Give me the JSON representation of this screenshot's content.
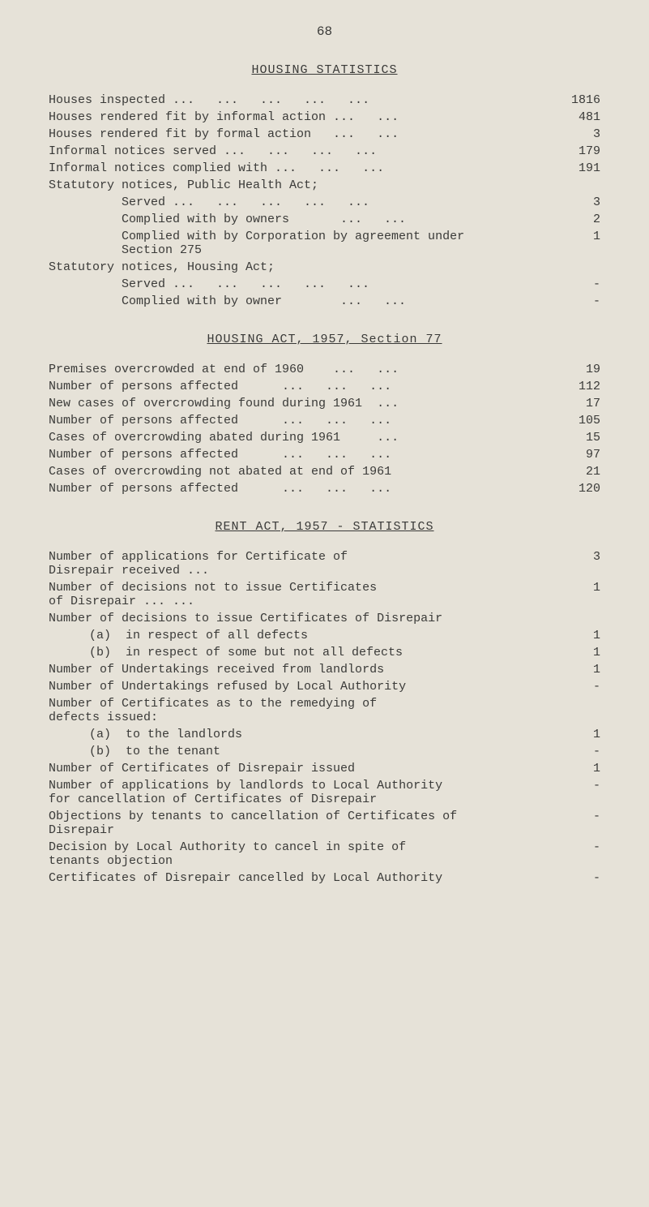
{
  "page_number": "68",
  "colors": {
    "background": "#e6e2d8",
    "text": "#3a3a38"
  },
  "typography": {
    "font_family": "Courier New, monospace",
    "body_fontsize": 15,
    "title_fontsize": 15
  },
  "sections": {
    "housing_statistics": {
      "title": "HOUSING STATISTICS",
      "rows": [
        {
          "label": "Houses inspected ...   ...   ...   ...   ...",
          "value": "1816"
        },
        {
          "label": "Houses rendered fit by informal action ...   ...",
          "value": "481"
        },
        {
          "label": "Houses rendered fit by formal action   ...   ...",
          "value": "3"
        },
        {
          "label": "Informal notices served ...   ...   ...   ...",
          "value": "179"
        },
        {
          "label": "Informal notices complied with ...   ...   ...",
          "value": "191"
        },
        {
          "label": "Statutory notices, Public Health Act;",
          "value": ""
        },
        {
          "label": "Served ...   ...   ...   ...   ...",
          "value": "3",
          "indent": "indent1"
        },
        {
          "label": "Complied with by owners       ...   ...",
          "value": "2",
          "indent": "indent1"
        },
        {
          "label": "Complied with by Corporation by agreement under\n                          Section 275",
          "value": "1",
          "indent": "indent1",
          "multiline": true
        },
        {
          "label": "Statutory notices, Housing Act;",
          "value": ""
        },
        {
          "label": "Served ...   ...   ...   ...   ...",
          "value": "-",
          "indent": "indent1"
        },
        {
          "label": "Complied with by owner        ...   ...",
          "value": "-",
          "indent": "indent1"
        }
      ]
    },
    "housing_act_1957": {
      "title": "HOUSING ACT, 1957, Section 77",
      "rows": [
        {
          "label": "Premises overcrowded at end of 1960    ...   ...",
          "value": "19"
        },
        {
          "label": "Number of persons affected      ...   ...   ...",
          "value": "112"
        },
        {
          "label": "New cases of overcrowding found during 1961  ...",
          "value": "17"
        },
        {
          "label": "Number of persons affected      ...   ...   ...",
          "value": "105"
        },
        {
          "label": "Cases of overcrowding abated during 1961     ...",
          "value": "15"
        },
        {
          "label": "Number of persons affected      ...   ...   ...",
          "value": "97"
        },
        {
          "label": "Cases of overcrowding not abated at end of 1961",
          "value": "21"
        },
        {
          "label": "Number of persons affected      ...   ...   ...",
          "value": "120"
        }
      ]
    },
    "rent_act_1957": {
      "title": "RENT ACT, 1957 - STATISTICS",
      "rows": [
        {
          "label": "Number of applications for Certificate of\n                    Disrepair received    ...",
          "value": "3",
          "multiline": true
        },
        {
          "label": "Number of decisions not to issue Certificates\n                    of Disrepair  ...   ...",
          "value": "1",
          "multiline": true
        },
        {
          "label": "Number of decisions to issue Certificates of Disrepair",
          "value": ""
        },
        {
          "label": "(a)  in respect of all defects",
          "value": "1",
          "indent": "indent-sub"
        },
        {
          "label": "(b)  in respect of some but not all defects",
          "value": "1",
          "indent": "indent-sub"
        },
        {
          "label": "Number of Undertakings received from landlords",
          "value": "1"
        },
        {
          "label": "Number of Undertakings refused by Local Authority",
          "value": "-"
        },
        {
          "label": "Number of Certificates as to the remedying of\n                defects issued:",
          "value": "",
          "multiline": true
        },
        {
          "label": "(a)  to the landlords",
          "value": "1",
          "indent": "indent-sub"
        },
        {
          "label": "(b)  to the tenant",
          "value": "-",
          "indent": "indent-sub"
        },
        {
          "label": "Number of Certificates of Disrepair issued",
          "value": "1"
        },
        {
          "label": "Number of applications by landlords to Local Authority\n     for cancellation of Certificates of Disrepair",
          "value": "-",
          "multiline": true
        },
        {
          "label": "Objections by tenants to cancellation of Certificates of\n                         Disrepair",
          "value": "-",
          "multiline": true
        },
        {
          "label": "Decision by Local Authority to cancel in spite of\n                  tenants objection",
          "value": "-",
          "multiline": true
        },
        {
          "label": "Certificates of Disrepair cancelled by Local Authority",
          "value": "-"
        }
      ]
    }
  }
}
